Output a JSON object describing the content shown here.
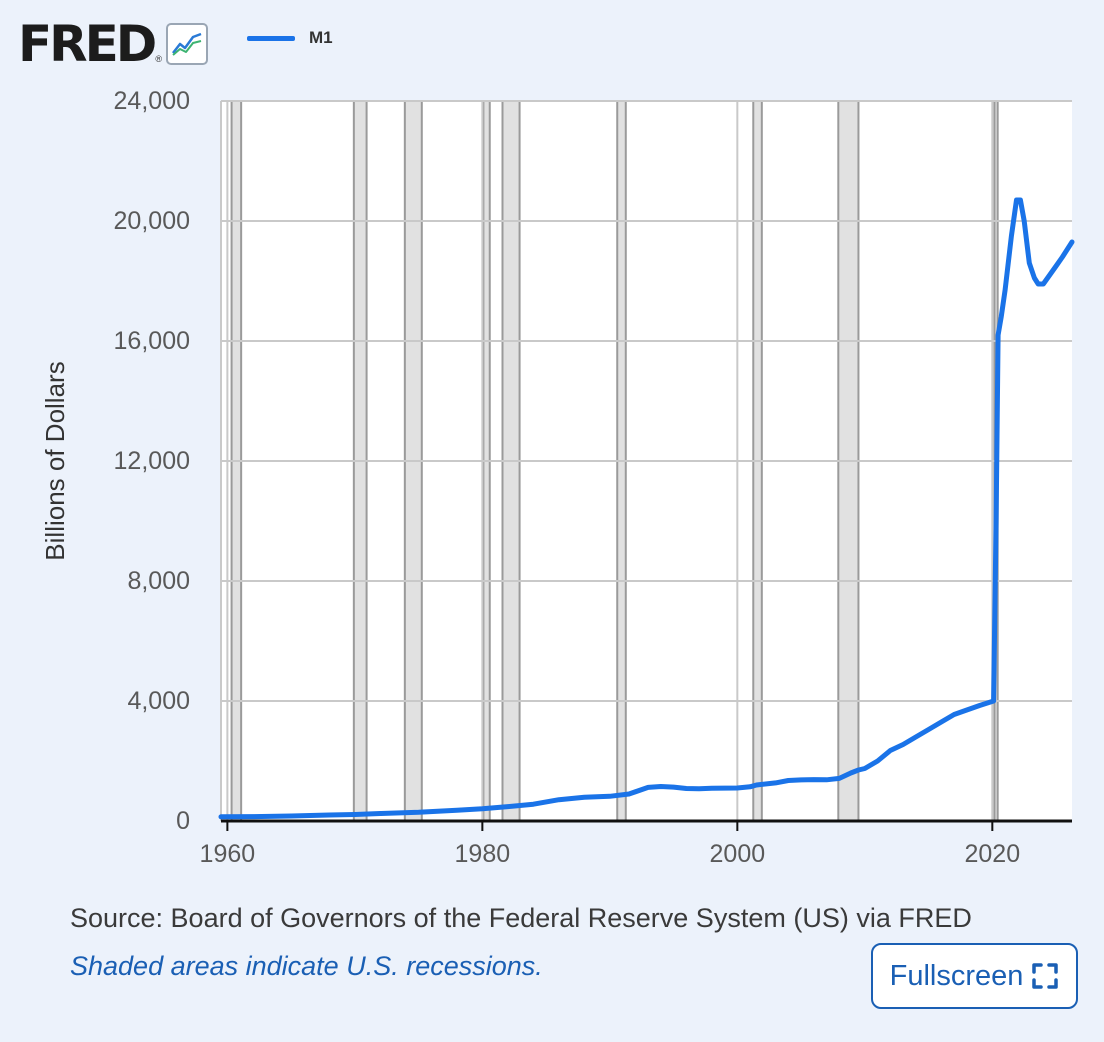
{
  "header": {
    "logo_text": "FRED",
    "logo_mark": "®",
    "logo_icon": "line-chart-icon"
  },
  "legend": {
    "label": "M1",
    "color": "#1a73e8"
  },
  "footer": {
    "source": "Source: Board of Governors of the Federal Reserve System (US) via FRED",
    "note": "Shaded areas indicate U.S. recessions.",
    "fullscreen_label": "Fullscreen",
    "fullscreen_icon": "fullscreen-icon"
  },
  "colors": {
    "series": "#1a73e8",
    "recession": "#e1e1e1",
    "link": "#1a5fb4"
  },
  "chart_data": {
    "type": "line",
    "title": "",
    "xlabel": "",
    "ylabel": "Billions of Dollars",
    "xlim": [
      1959.5,
      2026.25
    ],
    "ylim": [
      0,
      24000
    ],
    "x_ticks": [
      1960,
      1980,
      2000,
      2020
    ],
    "y_ticks": [
      0,
      4000,
      8000,
      12000,
      16000,
      20000,
      24000
    ],
    "x_tick_labels": [
      "1960",
      "1980",
      "2000",
      "2020"
    ],
    "y_tick_labels": [
      "0",
      "4,000",
      "8,000",
      "12,000",
      "16,000",
      "20,000",
      "24,000"
    ],
    "grid": true,
    "recessions": [
      [
        1960.33,
        1961.08
      ],
      [
        1969.92,
        1970.92
      ],
      [
        1973.92,
        1975.25
      ],
      [
        1980.08,
        1980.58
      ],
      [
        1981.58,
        1982.92
      ],
      [
        1990.58,
        1991.25
      ],
      [
        2001.25,
        2001.92
      ],
      [
        2007.92,
        2009.5
      ],
      [
        2020.17,
        2020.42
      ]
    ],
    "series": [
      {
        "name": "M1",
        "x": [
          1959.5,
          1962,
          1965,
          1968,
          1970,
          1972,
          1975,
          1978,
          1980,
          1982,
          1984,
          1986,
          1987,
          1988,
          1990,
          1991.5,
          1993,
          1994,
          1995,
          1996,
          1997,
          1998,
          2000,
          2001,
          2001.5,
          2003,
          2004,
          2005,
          2006,
          2007,
          2008,
          2008.9,
          2009.5,
          2010,
          2011,
          2012,
          2013,
          2014,
          2015,
          2016,
          2017,
          2018,
          2019,
          2020.1,
          2020.3,
          2020.45,
          2020.7,
          2021,
          2021.5,
          2021.9,
          2022.2,
          2022.5,
          2022.9,
          2023.3,
          2023.6,
          2024,
          2024.5,
          2025,
          2025.5,
          2026.25
        ],
        "y": [
          140,
          145,
          165,
          200,
          215,
          250,
          290,
          360,
          410,
          480,
          560,
          710,
          750,
          790,
          825,
          900,
          1120,
          1150,
          1130,
          1085,
          1075,
          1090,
          1100,
          1140,
          1200,
          1270,
          1350,
          1370,
          1380,
          1375,
          1420,
          1600,
          1700,
          1750,
          2000,
          2350,
          2550,
          2800,
          3050,
          3300,
          3550,
          3700,
          3850,
          4000,
          10000,
          16200,
          16800,
          17700,
          19500,
          20700,
          20700,
          20000,
          18600,
          18100,
          17900,
          17900,
          18200,
          18500,
          18800,
          19300
        ]
      }
    ]
  }
}
